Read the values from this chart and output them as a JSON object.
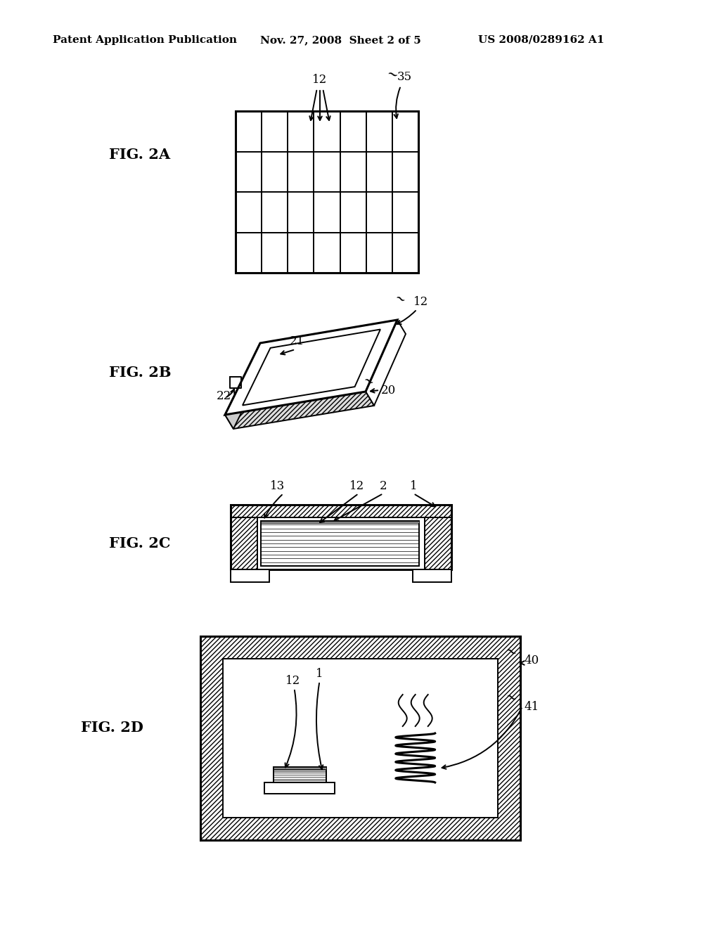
{
  "bg_color": "#ffffff",
  "header_left": "Patent Application Publication",
  "header_mid": "Nov. 27, 2008  Sheet 2 of 5",
  "header_right": "US 2008/0289162 A1",
  "header_fontsize": 11,
  "fig_label_fontsize": 15,
  "annotation_fontsize": 12
}
